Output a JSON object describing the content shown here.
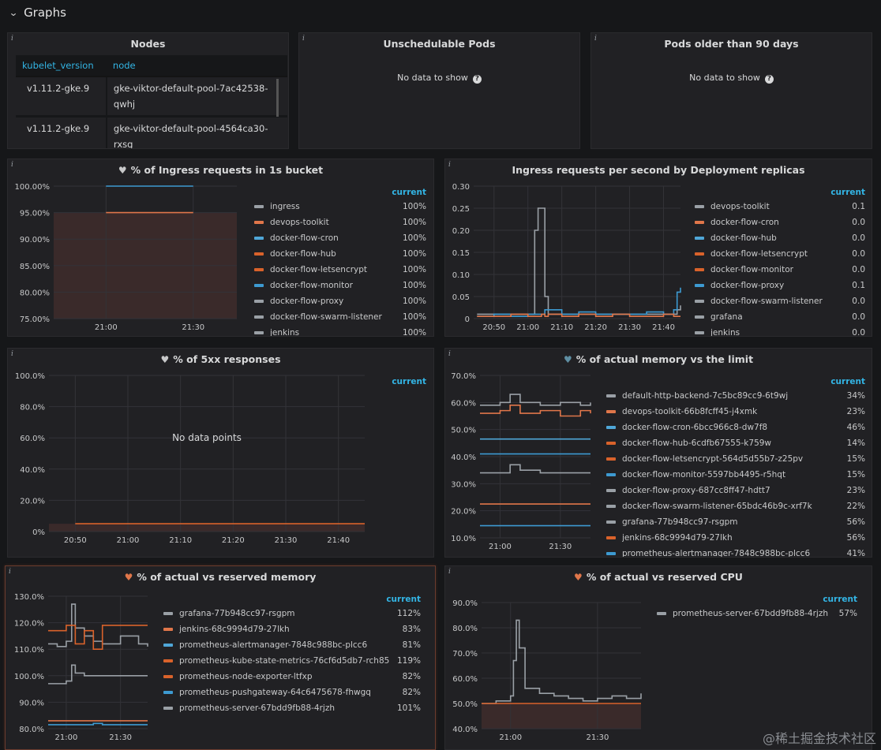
{
  "row": {
    "title": "Graphs"
  },
  "nodes_panel": {
    "title": "Nodes",
    "columns": [
      "kubelet_version",
      "node"
    ],
    "rows": [
      {
        "version": "v1.11.2-gke.9",
        "node_l1": "gke-viktor-default-pool-7ac42538-",
        "node_l2": "qwhj"
      },
      {
        "version": "v1.11.2-gke.9",
        "node_l1": "gke-viktor-default-pool-4564ca30-",
        "node_l2": "rxsg"
      }
    ]
  },
  "unsched_panel": {
    "title": "Unschedulable Pods",
    "nodata": "No data to show"
  },
  "older_panel": {
    "title": "Pods older than 90 days",
    "nodata": "No data to show"
  },
  "ingress_bucket": {
    "title": "% of Ingress requests in 1s bucket",
    "current_label": "current",
    "legend": [
      {
        "name": "ingress",
        "value": "100%",
        "color": "#9aa0a6"
      },
      {
        "name": "devops-toolkit",
        "value": "100%",
        "color": "#e0764a"
      },
      {
        "name": "docker-flow-cron",
        "value": "100%",
        "color": "#4fa7d8"
      },
      {
        "name": "docker-flow-hub",
        "value": "100%",
        "color": "#d9622b"
      },
      {
        "name": "docker-flow-letsencrypt",
        "value": "100%",
        "color": "#d9622b"
      },
      {
        "name": "docker-flow-monitor",
        "value": "100%",
        "color": "#3d9ad1"
      },
      {
        "name": "docker-flow-proxy",
        "value": "100%",
        "color": "#9aa0a6"
      },
      {
        "name": "docker-flow-swarm-listener",
        "value": "100%",
        "color": "#9aa0a6"
      },
      {
        "name": "jenkins",
        "value": "100%",
        "color": "#9aa0a6"
      }
    ],
    "chart_data": {
      "type": "line",
      "x": [
        "21:00",
        "21:30"
      ],
      "series": [
        {
          "values": [
            100,
            100
          ],
          "color": "#3d9ad1"
        },
        {
          "values": [
            95,
            95
          ],
          "color": "#e0764a"
        }
      ],
      "y_ticks": [
        "100.00%",
        "95.00%",
        "90.00%",
        "85.00%",
        "80.00%",
        "75.00%"
      ],
      "x_ticks": [
        "21:00",
        "21:30"
      ],
      "ylim": [
        75,
        100
      ]
    }
  },
  "ingress_rps": {
    "title": "Ingress requests per second by Deployment replicas",
    "current_label": "current",
    "legend": [
      {
        "name": "devops-toolkit",
        "value": "0.1",
        "color": "#9aa0a6"
      },
      {
        "name": "docker-flow-cron",
        "value": "0.0",
        "color": "#e0764a"
      },
      {
        "name": "docker-flow-hub",
        "value": "0.0",
        "color": "#4fa7d8"
      },
      {
        "name": "docker-flow-letsencrypt",
        "value": "0.0",
        "color": "#d9622b"
      },
      {
        "name": "docker-flow-monitor",
        "value": "0.0",
        "color": "#d9622b"
      },
      {
        "name": "docker-flow-proxy",
        "value": "0.1",
        "color": "#3d9ad1"
      },
      {
        "name": "docker-flow-swarm-listener",
        "value": "0.0",
        "color": "#9aa0a6"
      },
      {
        "name": "grafana",
        "value": "0.0",
        "color": "#9aa0a6"
      },
      {
        "name": "jenkins",
        "value": "0.0",
        "color": "#9aa0a6"
      }
    ],
    "chart_data": {
      "type": "line",
      "x": [
        "20:45",
        "20:50",
        "20:55",
        "21:00",
        "21:02",
        "21:03",
        "21:04",
        "21:05",
        "21:06",
        "21:10",
        "21:15",
        "21:20",
        "21:25",
        "21:30",
        "21:35",
        "21:40",
        "21:43",
        "21:44",
        "21:45"
      ],
      "series": [
        {
          "color": "#9aa0a6",
          "values": [
            0.01,
            0.01,
            0.01,
            0.01,
            0.2,
            0.25,
            0.25,
            0.05,
            0.01,
            0.01,
            0.01,
            0.01,
            0.01,
            0.01,
            0.01,
            0.01,
            0.01,
            0.02,
            0.03
          ]
        },
        {
          "color": "#3d9ad1",
          "values": [
            0.005,
            0.01,
            0.005,
            0.01,
            0.01,
            0.01,
            0.01,
            0.02,
            0.02,
            0.01,
            0.015,
            0.01,
            0.01,
            0.01,
            0.015,
            0.01,
            0.02,
            0.06,
            0.07
          ]
        },
        {
          "color": "#e0764a",
          "values": [
            0.005,
            0.005,
            0.01,
            0.005,
            0.005,
            0.005,
            0.01,
            0.005,
            0.01,
            0.005,
            0.01,
            0.005,
            0.01,
            0.005,
            0.005,
            0.01,
            0.005,
            0.005,
            0.005
          ]
        }
      ],
      "y_ticks": [
        "0.30",
        "0.25",
        "0.20",
        "0.15",
        "0.10",
        "0.05",
        "0"
      ],
      "x_ticks": [
        "20:50",
        "21:00",
        "21:10",
        "21:20",
        "21:30",
        "21:40"
      ],
      "ylim": [
        0,
        0.3
      ]
    }
  },
  "fivexx": {
    "title": "% of 5xx responses",
    "current_label": "current",
    "nodata": "No data points",
    "chart_data": {
      "type": "line",
      "x": [
        "20:50",
        "21:45"
      ],
      "series": [
        {
          "values": [
            5,
            5
          ],
          "color": "#d9622b"
        }
      ],
      "y_ticks": [
        "100.0%",
        "80.0%",
        "60.0%",
        "40.0%",
        "20.0%",
        "0%"
      ],
      "x_ticks": [
        "20:50",
        "21:00",
        "21:10",
        "21:20",
        "21:30",
        "21:40"
      ],
      "ylim": [
        0,
        100
      ]
    }
  },
  "mem_limit": {
    "title": "% of actual memory vs the limit",
    "current_label": "current",
    "legend": [
      {
        "name": "default-http-backend-7c5bc89cc9-6t9wj",
        "value": "34%",
        "color": "#9aa0a6"
      },
      {
        "name": "devops-toolkit-66b8fcff45-j4xmk",
        "value": "23%",
        "color": "#e0764a"
      },
      {
        "name": "docker-flow-cron-6bcc966c8-dw7f8",
        "value": "46%",
        "color": "#4fa7d8"
      },
      {
        "name": "docker-flow-hub-6cdfb67555-k759w",
        "value": "14%",
        "color": "#d9622b"
      },
      {
        "name": "docker-flow-letsencrypt-564d5d55b7-z25pv",
        "value": "15%",
        "color": "#d9622b"
      },
      {
        "name": "docker-flow-monitor-5597bb4495-r5hqt",
        "value": "15%",
        "color": "#3d9ad1"
      },
      {
        "name": "docker-flow-proxy-687cc8ff47-hdtt7",
        "value": "23%",
        "color": "#9aa0a6"
      },
      {
        "name": "docker-flow-swarm-listener-65bdc46b9c-xrf7k",
        "value": "22%",
        "color": "#9aa0a6"
      },
      {
        "name": "grafana-77b948cc97-rsgpm",
        "value": "56%",
        "color": "#9aa0a6"
      },
      {
        "name": "jenkins-68c9994d79-27lkh",
        "value": "56%",
        "color": "#d9622b"
      },
      {
        "name": "prometheus-alertmanager-7848c988bc-plcc6",
        "value": "41%",
        "color": "#3d9ad1"
      }
    ],
    "chart_data": {
      "type": "line",
      "x": [
        "20:50",
        "21:00",
        "21:05",
        "21:10",
        "21:20",
        "21:30",
        "21:40",
        "21:45"
      ],
      "series": [
        {
          "color": "#9aa0a6",
          "values": [
            59,
            60,
            63,
            60,
            59,
            60,
            59,
            60
          ]
        },
        {
          "color": "#e0764a",
          "values": [
            56,
            57,
            59,
            56,
            57,
            55,
            57,
            56
          ]
        },
        {
          "color": "#4fa7d8",
          "values": [
            46.5,
            46.5,
            46.5,
            46.5,
            46.5,
            46.5,
            46.5,
            46.5
          ]
        },
        {
          "color": "#3d9ad1",
          "values": [
            41,
            41,
            41,
            41,
            41,
            41,
            41,
            41
          ]
        },
        {
          "color": "#9aa0a6",
          "values": [
            34,
            34,
            37,
            35,
            34,
            34,
            34,
            34
          ]
        },
        {
          "color": "#e0764a",
          "values": [
            22.5,
            22.5,
            22.5,
            22.5,
            22.5,
            22.5,
            22.5,
            22.5
          ]
        },
        {
          "color": "#3d9ad1",
          "values": [
            14.5,
            14.5,
            14.5,
            14.5,
            14.5,
            14.5,
            14.5,
            14.5
          ]
        }
      ],
      "y_ticks": [
        "70.0%",
        "60.0%",
        "50.0%",
        "40.0%",
        "30.0%",
        "20.0%",
        "10.0%"
      ],
      "x_ticks": [
        "21:00",
        "21:30"
      ],
      "ylim": [
        10,
        70
      ]
    }
  },
  "mem_reserved": {
    "title": "% of actual vs reserved memory",
    "current_label": "current",
    "legend": [
      {
        "name": "grafana-77b948cc97-rsgpm",
        "value": "112%",
        "color": "#9aa0a6"
      },
      {
        "name": "jenkins-68c9994d79-27lkh",
        "value": "83%",
        "color": "#e0764a"
      },
      {
        "name": "prometheus-alertmanager-7848c988bc-plcc6",
        "value": "81%",
        "color": "#4fa7d8"
      },
      {
        "name": "prometheus-kube-state-metrics-76cf6d5db7-rch85",
        "value": "119%",
        "color": "#d9622b"
      },
      {
        "name": "prometheus-node-exporter-ltfxp",
        "value": "82%",
        "color": "#d9622b"
      },
      {
        "name": "prometheus-pushgateway-64c6475678-fhwgq",
        "value": "82%",
        "color": "#3d9ad1"
      },
      {
        "name": "prometheus-server-67bdd9fb88-4rjzh",
        "value": "101%",
        "color": "#9aa0a6"
      }
    ],
    "chart_data": {
      "type": "line",
      "x": [
        "20:50",
        "20:55",
        "21:00",
        "21:03",
        "21:05",
        "21:10",
        "21:15",
        "21:20",
        "21:30",
        "21:40",
        "21:45"
      ],
      "series": [
        {
          "color": "#9aa0a6",
          "values": [
            112,
            111,
            113,
            127,
            118,
            115,
            113,
            112,
            115,
            112,
            111
          ]
        },
        {
          "color": "#d9622b",
          "values": [
            117,
            117,
            119,
            119,
            112,
            117,
            110,
            119,
            119,
            119,
            119
          ]
        },
        {
          "color": "#9aa0a6",
          "values": [
            97,
            97,
            98,
            104,
            101,
            100,
            100,
            100,
            100,
            100,
            100
          ]
        },
        {
          "color": "#e0764a",
          "values": [
            83,
            83,
            83,
            83,
            83,
            83,
            83,
            83,
            83,
            83,
            83
          ]
        },
        {
          "color": "#3d9ad1",
          "values": [
            81.5,
            81.5,
            81.5,
            81.5,
            81.5,
            81.5,
            82,
            81.5,
            81.5,
            81.5,
            81.5
          ]
        }
      ],
      "y_ticks": [
        "130.0%",
        "120.0%",
        "110.0%",
        "100.0%",
        "90.0%",
        "80.0%"
      ],
      "x_ticks": [
        "21:00",
        "21:30"
      ],
      "ylim": [
        80,
        130
      ]
    }
  },
  "cpu_reserved": {
    "title": "% of actual vs reserved CPU",
    "current_label": "current",
    "legend": [
      {
        "name": "prometheus-server-67bdd9fb88-4rjzh",
        "value": "57%",
        "color": "#9aa0a6"
      }
    ],
    "chart_data": {
      "type": "line",
      "x": [
        "20:50",
        "20:55",
        "21:00",
        "21:01",
        "21:02",
        "21:03",
        "21:05",
        "21:10",
        "21:15",
        "21:20",
        "21:25",
        "21:30",
        "21:35",
        "21:40",
        "21:45"
      ],
      "series": [
        {
          "color": "#9aa0a6",
          "values": [
            50,
            51,
            53,
            67,
            83,
            72,
            56,
            54,
            53,
            52,
            51,
            52,
            53,
            52,
            54
          ]
        },
        {
          "color": "#d9622b",
          "values": [
            50,
            50,
            50,
            50,
            50,
            50,
            50,
            50,
            50,
            50,
            50,
            50,
            50,
            50,
            50
          ]
        }
      ],
      "y_ticks": [
        "90.0%",
        "80.0%",
        "70.0%",
        "60.0%",
        "50.0%",
        "40.0%"
      ],
      "x_ticks": [
        "21:00",
        "21:30"
      ],
      "ylim": [
        40,
        90
      ]
    }
  },
  "watermark": "@稀土掘金技术社区"
}
